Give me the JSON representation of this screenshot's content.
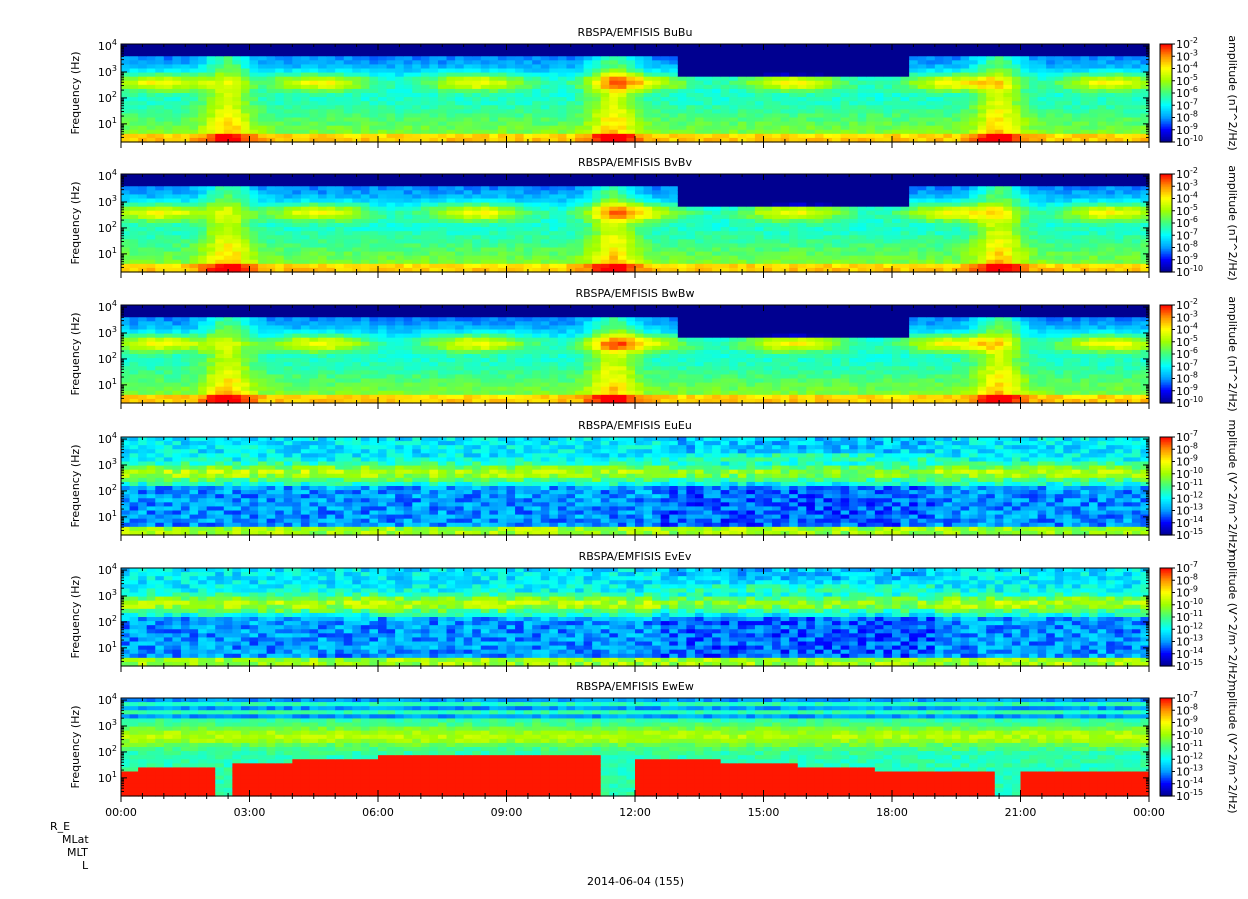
{
  "chart_data": {
    "type": "heatmap",
    "date_label": "2014-06-04 (155)",
    "x_ticks": [
      "00:00",
      "03:00",
      "06:00",
      "09:00",
      "12:00",
      "15:00",
      "18:00",
      "21:00",
      "00:00"
    ],
    "x_range": [
      "00:00",
      "24:00"
    ],
    "ephemeris_labels": [
      "R_E",
      "MLat",
      "MLT",
      "L"
    ],
    "y_scale": "log",
    "y_range_hz": [
      2,
      12000
    ],
    "panels": [
      {
        "title": "RBSPA/EMFISIS  BuBu",
        "ylabel": "Frequency (Hz)",
        "colorbar_label": "amplitude (nT^2/Hz)",
        "c_exp_range": [
          -10,
          -2
        ],
        "component": "B"
      },
      {
        "title": "RBSPA/EMFISIS  BvBv",
        "ylabel": "Frequency (Hz)",
        "colorbar_label": "amplitude (nT^2/Hz)",
        "c_exp_range": [
          -10,
          -2
        ],
        "component": "B"
      },
      {
        "title": "RBSPA/EMFISIS  BwBw",
        "ylabel": "Frequency (Hz)",
        "colorbar_label": "amplitude (nT^2/Hz)",
        "c_exp_range": [
          -10,
          -2
        ],
        "component": "B"
      },
      {
        "title": "RBSPA/EMFISIS  EuEu",
        "ylabel": "Frequency (Hz)",
        "colorbar_label": "mplitude (V^2/m^2/Hz)",
        "c_exp_range": [
          -15,
          -7
        ],
        "component": "E"
      },
      {
        "title": "RBSPA/EMFISIS  EvEv",
        "ylabel": "Frequency (Hz)",
        "colorbar_label": "mplitude (V^2/m^2/Hz)",
        "c_exp_range": [
          -15,
          -7
        ],
        "component": "E"
      },
      {
        "title": "RBSPA/EMFISIS  EwEw",
        "ylabel": "Frequency (Hz)",
        "colorbar_label": "mplitude (V^2/m^2/Hz)",
        "c_exp_range": [
          -15,
          -7
        ],
        "component": "Ew"
      }
    ],
    "colormap": [
      "#000090",
      "#0000ff",
      "#00a0ff",
      "#00ffff",
      "#40ff80",
      "#a0ff00",
      "#ffff00",
      "#ff9000",
      "#ff0000"
    ]
  }
}
